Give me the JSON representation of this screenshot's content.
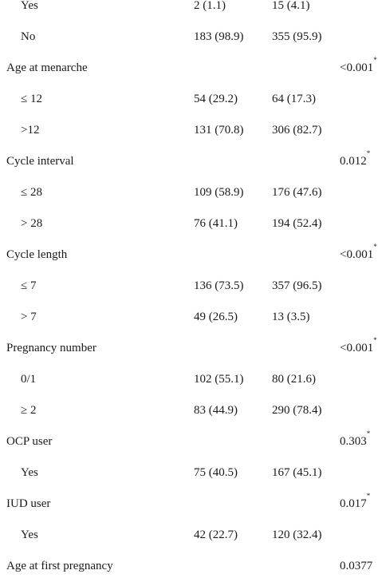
{
  "rows": [
    {
      "label": "Yes",
      "a": "2 (1.1)",
      "b": "15 (4.1)",
      "p": "",
      "sup": "",
      "sub": true
    },
    {
      "label": "No",
      "a": "183 (98.9)",
      "b": "355 (95.9)",
      "p": "",
      "sup": "",
      "sub": true
    },
    {
      "label": "Age at menarche",
      "a": "",
      "b": "",
      "p": "<0.001",
      "sup": "*",
      "sub": false
    },
    {
      "label": "≤ 12",
      "a": "54 (29.2)",
      "b": "64 (17.3)",
      "p": "",
      "sup": "",
      "sub": true
    },
    {
      "label": ">12",
      "a": "131 (70.8)",
      "b": "306 (82.7)",
      "p": "",
      "sup": "",
      "sub": true
    },
    {
      "label": "Cycle interval",
      "a": "",
      "b": "",
      "p": "0.012",
      "sup": "*",
      "sub": false
    },
    {
      "label": "≤ 28",
      "a": "109 (58.9)",
      "b": "176 (47.6)",
      "p": "",
      "sup": "",
      "sub": true
    },
    {
      "label": "> 28",
      "a": "76 (41.1)",
      "b": "194 (52.4)",
      "p": "",
      "sup": "",
      "sub": true
    },
    {
      "label": "Cycle length",
      "a": "",
      "b": "",
      "p": "<0.001",
      "sup": "*",
      "sub": false
    },
    {
      "label": "≤ 7",
      "a": "136 (73.5)",
      "b": "357 (96.5)",
      "p": "",
      "sup": "",
      "sub": true
    },
    {
      "label": "> 7",
      "a": "49 (26.5)",
      "b": "13 (3.5)",
      "p": "",
      "sup": "",
      "sub": true
    },
    {
      "label": "Pregnancy number",
      "a": "",
      "b": "",
      "p": "<0.001",
      "sup": "*",
      "sub": false
    },
    {
      "label": "0/1",
      "a": "102 (55.1)",
      "b": "80 (21.6)",
      "p": "",
      "sup": "",
      "sub": true
    },
    {
      "label": "≥ 2",
      "a": "83 (44.9)",
      "b": "290 (78.4)",
      "p": "",
      "sup": "",
      "sub": true
    },
    {
      "label": "OCP user",
      "a": "",
      "b": "",
      "p": "0.303",
      "sup": "*",
      "sub": false
    },
    {
      "label": "Yes",
      "a": "75 (40.5)",
      "b": "167 (45.1)",
      "p": "",
      "sup": "",
      "sub": true
    },
    {
      "label": "IUD user",
      "a": "",
      "b": "",
      "p": "0.017",
      "sup": "*",
      "sub": false
    },
    {
      "label": "Yes",
      "a": "42 (22.7)",
      "b": "120 (32.4)",
      "p": "",
      "sup": "",
      "sub": true
    },
    {
      "label": "Age at first pregnancy",
      "a": "",
      "b": "",
      "p": "0.0377",
      "sup": "",
      "sub": false
    }
  ]
}
